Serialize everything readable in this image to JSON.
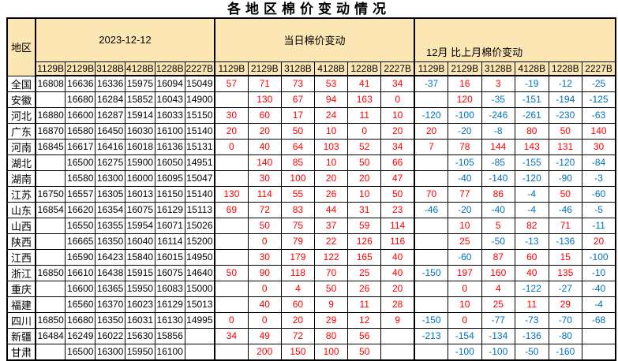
{
  "title": "各地区棉价变动情况",
  "colors": {
    "header_bg": "#FCE6B4",
    "positive_change": "#FF0000",
    "negative_change": "#0070C0",
    "price_text": "#000000",
    "border": "#000000"
  },
  "table": {
    "region_header": "地区",
    "groups": [
      {
        "label": "2023-12-12",
        "codes": [
          "1129B",
          "2129B",
          "3128B",
          "4128B",
          "1228B",
          "2227B"
        ]
      },
      {
        "label": "当日棉价变动",
        "codes": [
          "1129B",
          "2129B",
          "3128B",
          "4128B",
          "1228B",
          "2227B"
        ]
      },
      {
        "label": "12月 比上月棉价变动",
        "codes": [
          "1129B",
          "2129B",
          "3128B",
          "4128B",
          "1228B",
          "2227B"
        ]
      }
    ],
    "rows": [
      {
        "region": "全国",
        "prices": [
          "16808",
          "16636",
          "16336",
          "15975",
          "16094",
          "15049"
        ],
        "daily": [
          "57",
          "71",
          "73",
          "53",
          "41",
          "34"
        ],
        "monthly": [
          "-37",
          "16",
          "3",
          "-19",
          "-12",
          "-25"
        ]
      },
      {
        "region": "安徽",
        "prices": [
          "",
          "16680",
          "16284",
          "15852",
          "16043",
          "14900"
        ],
        "daily": [
          "",
          "130",
          "67",
          "94",
          "163",
          "0"
        ],
        "monthly": [
          "",
          "120",
          "-35",
          "-151",
          "-194",
          "-125"
        ]
      },
      {
        "region": "河北",
        "prices": [
          "16880",
          "16600",
          "16287",
          "15914",
          "16033",
          "15150"
        ],
        "daily": [
          "30",
          "60",
          "17",
          "24",
          "11",
          "10"
        ],
        "monthly": [
          "-120",
          "-100",
          "-246",
          "-261",
          "-230",
          "-63"
        ]
      },
      {
        "region": "广东",
        "prices": [
          "16870",
          "16580",
          "16450",
          "16030",
          "16100",
          "15140"
        ],
        "daily": [
          "20",
          "20",
          "50",
          "10",
          "0",
          "20"
        ],
        "monthly": [
          "20",
          "-20",
          "-8",
          "80",
          "50",
          "140"
        ]
      },
      {
        "region": "河南",
        "prices": [
          "16845",
          "16617",
          "16416",
          "16018",
          "16136",
          "15131"
        ],
        "daily": [
          "0",
          "40",
          "64",
          "103",
          "52",
          "34"
        ],
        "monthly": [
          "7",
          "78",
          "144",
          "143",
          "131",
          "30"
        ]
      },
      {
        "region": "湖北",
        "prices": [
          "",
          "16500",
          "16275",
          "15900",
          "16050",
          "14951"
        ],
        "daily": [
          "",
          "140",
          "85",
          "10",
          "50",
          "66"
        ],
        "monthly": [
          "",
          "-105",
          "-85",
          "-155",
          "-120",
          "-84"
        ]
      },
      {
        "region": "湖南",
        "prices": [
          "",
          "16580",
          "16300",
          "16000",
          "16095",
          "15047"
        ],
        "daily": [
          "",
          "30",
          "100",
          "20",
          "20",
          "47"
        ],
        "monthly": [
          "",
          "-40",
          "-140",
          "-120",
          "-90",
          "-3"
        ]
      },
      {
        "region": "江苏",
        "prices": [
          "16750",
          "16557",
          "16305",
          "16013",
          "16150",
          "15140"
        ],
        "daily": [
          "130",
          "114",
          "55",
          "26",
          "10",
          "50"
        ],
        "monthly": [
          "70",
          "77",
          "86",
          "-4",
          "50",
          "-60"
        ]
      },
      {
        "region": "山东",
        "prices": [
          "16854",
          "16620",
          "16354",
          "16075",
          "16129",
          "15113"
        ],
        "daily": [
          "69",
          "72",
          "83",
          "44",
          "31",
          "23"
        ],
        "monthly": [
          "-46",
          "-20",
          "-40",
          "-4",
          "-46",
          "-5"
        ]
      },
      {
        "region": "山西",
        "prices": [
          "",
          "16550",
          "16355",
          "15954",
          "16071",
          "15026"
        ],
        "daily": [
          "",
          "50",
          "75",
          "37",
          "59",
          "114"
        ],
        "monthly": [
          "",
          "10",
          "5",
          "82",
          "71",
          "-11"
        ]
      },
      {
        "region": "陕西",
        "prices": [
          "",
          "16665",
          "16350",
          "16040",
          "16114",
          "15200"
        ],
        "daily": [
          "",
          "0",
          "79",
          "22",
          "126",
          "116"
        ],
        "monthly": [
          "",
          "25",
          "-50",
          "-13",
          "-136",
          "20"
        ]
      },
      {
        "region": "江西",
        "prices": [
          "",
          "16590",
          "16423",
          "15840",
          "16015",
          "14950"
        ],
        "daily": [
          "",
          "30",
          "179",
          "122",
          "165",
          "40"
        ],
        "monthly": [
          "",
          "-60",
          "87",
          "60",
          "15",
          "-100"
        ]
      },
      {
        "region": "浙江",
        "prices": [
          "16850",
          "16610",
          "16438",
          "15915",
          "16075",
          "14640"
        ],
        "daily": [
          "50",
          "90",
          "118",
          "70",
          "25",
          "40"
        ],
        "monthly": [
          "-150",
          "197",
          "160",
          "40",
          "135",
          "-10"
        ]
      },
      {
        "region": "重庆",
        "prices": [
          "",
          "16600",
          "16365",
          "15950",
          "16083",
          "15000"
        ],
        "daily": [
          "",
          "0",
          "4",
          "50",
          "26",
          "20"
        ],
        "monthly": [
          "",
          "0",
          "4",
          "-122",
          "-27",
          "-40"
        ]
      },
      {
        "region": "福建",
        "prices": [
          "",
          "16560",
          "16370",
          "16023",
          "16129",
          "15013"
        ],
        "daily": [
          "",
          "40",
          "60",
          "9",
          "11",
          "28"
        ],
        "monthly": [
          "",
          "10",
          "25",
          "11",
          "29",
          "-4"
        ]
      },
      {
        "region": "四川",
        "prices": [
          "16850",
          "16680",
          "16350",
          "16031",
          "16130",
          "14995"
        ],
        "daily": [
          "0",
          "0",
          "20",
          "29",
          "12",
          "9"
        ],
        "monthly": [
          "-150",
          "0",
          "-77",
          "-73",
          "-70",
          "-68"
        ]
      },
      {
        "region": "新疆",
        "prices": [
          "16484",
          "16249",
          "16022",
          "15630",
          "15856",
          ""
        ],
        "daily": [
          "34",
          "49",
          "72",
          "80",
          "56",
          ""
        ],
        "monthly": [
          "-213",
          "-154",
          "-134",
          "-136",
          "-80",
          ""
        ]
      },
      {
        "region": "甘肃",
        "prices": [
          "",
          "16500",
          "16300",
          "15950",
          "16100",
          ""
        ],
        "daily": [
          "",
          "200",
          "150",
          "100",
          "50",
          ""
        ],
        "monthly": [
          "",
          "-100",
          "-100",
          "-50",
          "-160",
          ""
        ]
      }
    ]
  }
}
